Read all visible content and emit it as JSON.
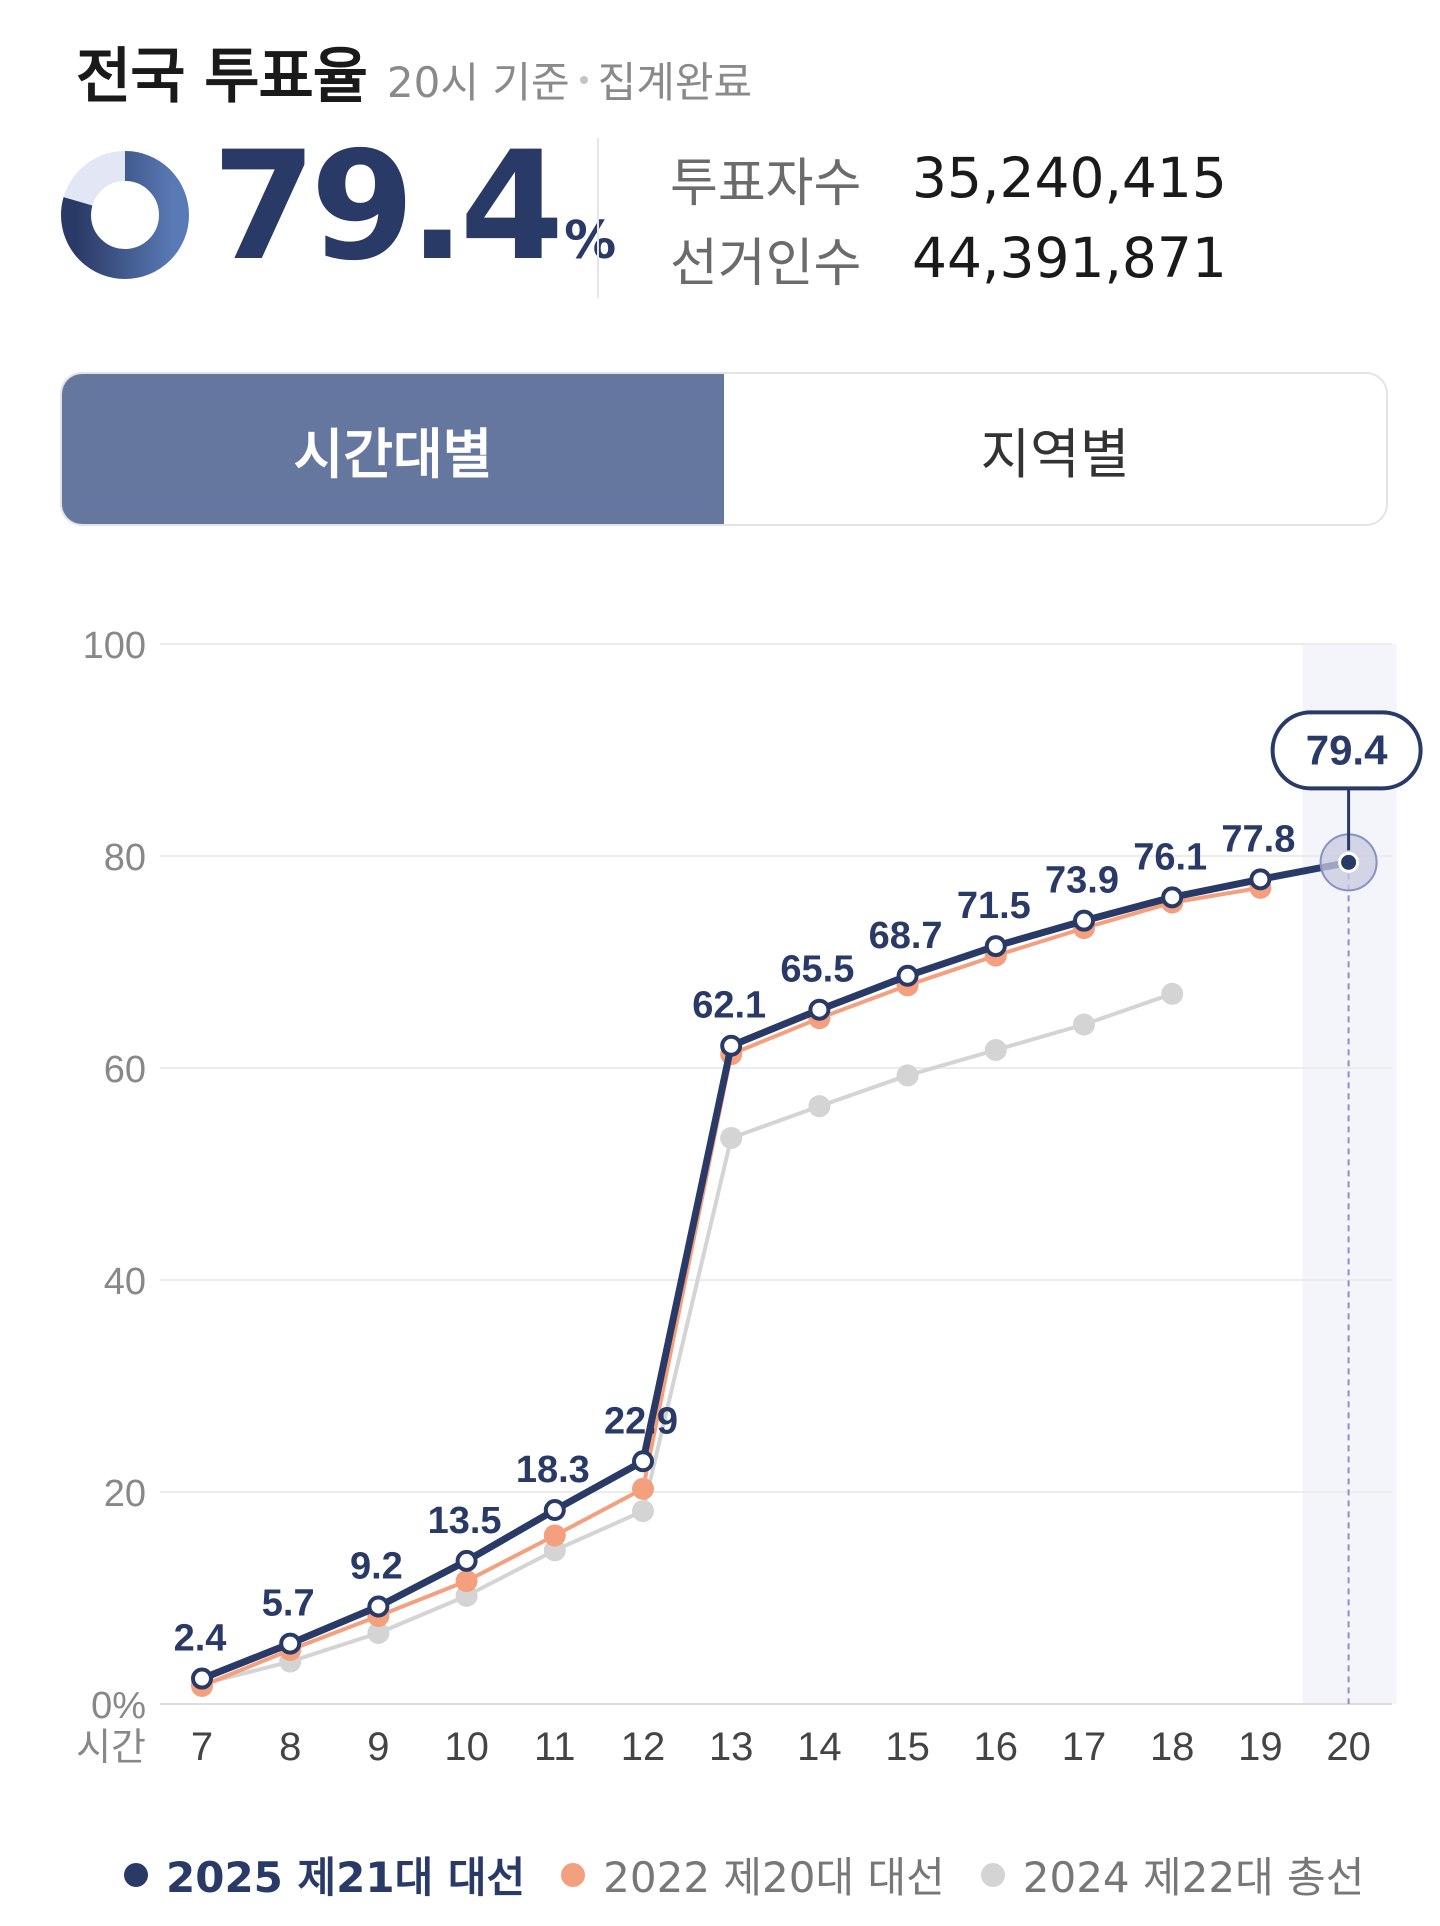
{
  "header": {
    "title": "전국 투표율",
    "subtitle_time": "20시 기준",
    "subtitle_status": "집계완료"
  },
  "summary": {
    "rate_value": "79.4",
    "rate_unit": "%",
    "rate_fraction": 0.794,
    "voters_label": "투표자수",
    "voters_value": "35,240,415",
    "electors_label": "선거인수",
    "electors_value": "44,391,871"
  },
  "tabs": [
    {
      "label": "시간대별",
      "active": true
    },
    {
      "label": "지역별",
      "active": false
    }
  ],
  "colors": {
    "primary": "#2a3a66",
    "secondary": "#f4a07e",
    "tertiary": "#d4d4d4",
    "tab_active": "#65779f",
    "highlight": "#f4f4fb"
  },
  "chart_data": {
    "type": "line",
    "x": [
      7,
      8,
      9,
      10,
      11,
      12,
      13,
      14,
      15,
      16,
      17,
      18,
      19,
      20
    ],
    "xlabel": "시간",
    "ylabel": "",
    "ylim": [
      0,
      100
    ],
    "yticks": [
      0,
      20,
      40,
      60,
      80,
      100
    ],
    "ytick_labels": [
      "0%",
      "20",
      "40",
      "60",
      "80",
      "100"
    ],
    "grid": true,
    "legend_position": "bottom",
    "highlight_x": 20,
    "highlight_label": "79.4",
    "series": [
      {
        "name": "2025 제21대 대선",
        "color": "#2a3a66",
        "values": [
          2.4,
          5.7,
          9.2,
          13.5,
          18.3,
          22.9,
          62.1,
          65.5,
          68.7,
          71.5,
          73.9,
          76.1,
          77.8,
          79.4
        ],
        "data_labels": [
          "2.4",
          "5.7",
          "9.2",
          "13.5",
          "18.3",
          "22.9",
          "62.1",
          "65.5",
          "68.7",
          "71.5",
          "73.9",
          "76.1",
          "77.8",
          null
        ]
      },
      {
        "name": "2022 제20대 대선",
        "color": "#f4a07e",
        "values": [
          1.7,
          5.1,
          8.3,
          11.6,
          15.9,
          20.3,
          61.3,
          64.7,
          67.8,
          70.6,
          73.2,
          75.6,
          77.0,
          null
        ]
      },
      {
        "name": "2024 제22대 총선",
        "color": "#d4d4d4",
        "values": [
          1.9,
          4.0,
          6.7,
          10.2,
          14.5,
          18.2,
          53.4,
          56.4,
          59.3,
          61.7,
          64.1,
          67.0,
          null,
          null
        ]
      }
    ]
  }
}
